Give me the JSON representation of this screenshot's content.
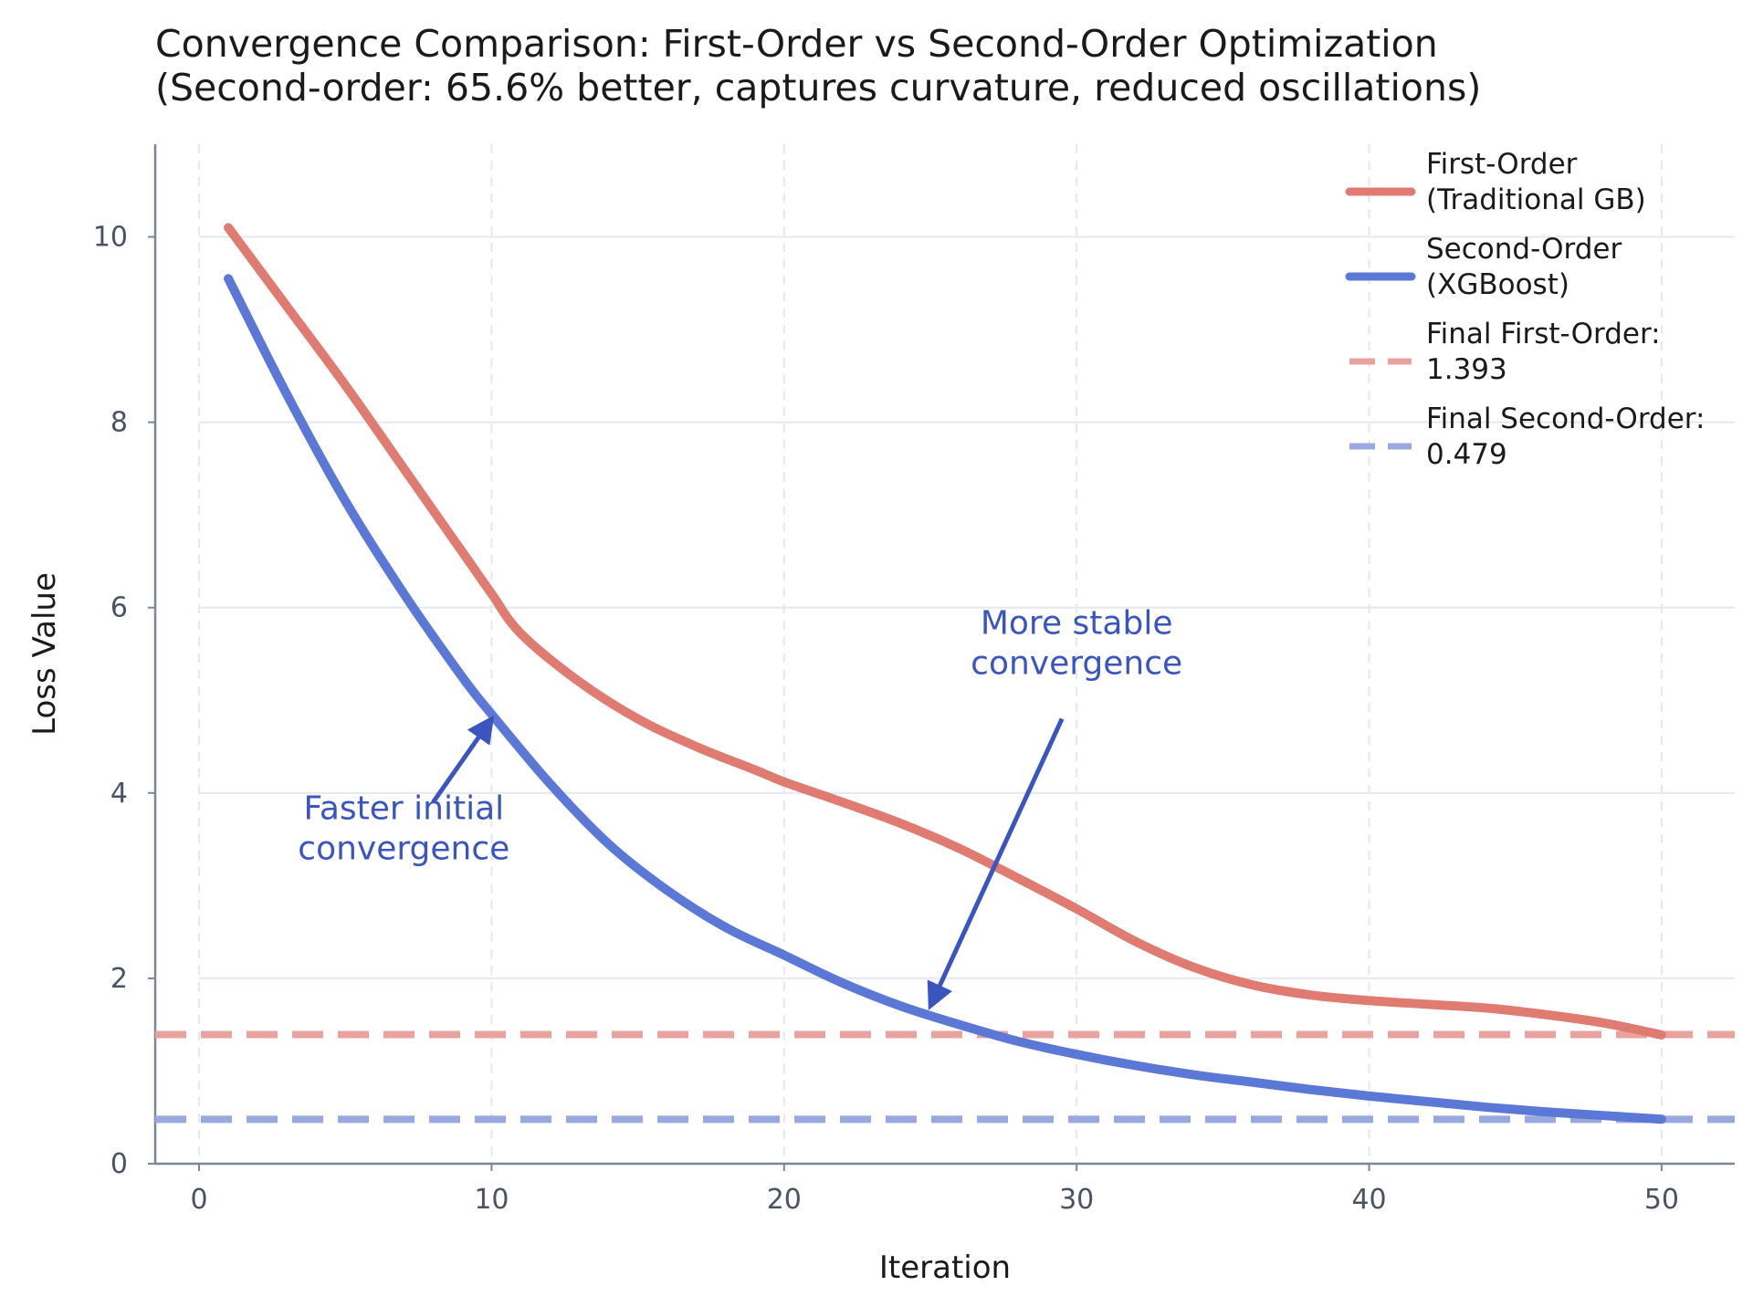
{
  "chart_data": {
    "type": "line",
    "title": "Convergence Comparison: First-Order vs Second-Order Optimization",
    "subtitle": "(Second-order: 65.6% better, captures curvature, reduced oscillations)",
    "xlabel": "Iteration",
    "ylabel": "Loss Value",
    "xlim": [
      -1.5,
      52.5
    ],
    "ylim": [
      0,
      11
    ],
    "xticks": [
      0,
      10,
      20,
      30,
      40,
      50
    ],
    "yticks": [
      0,
      2,
      4,
      6,
      8,
      10
    ],
    "grid": true,
    "legend_position": "top-right",
    "series": [
      {
        "name": "First-Order\n(Traditional GB)",
        "color": "#e07b72",
        "style": "solid",
        "x": [
          1,
          3,
          5,
          7,
          9,
          10,
          11,
          13,
          15,
          17,
          19,
          20,
          22,
          24,
          26,
          28,
          30,
          32,
          34,
          36,
          38,
          40,
          42,
          44,
          46,
          48,
          50
        ],
        "y": [
          10.1,
          9.25,
          8.4,
          7.5,
          6.6,
          6.15,
          5.72,
          5.2,
          4.8,
          4.5,
          4.25,
          4.12,
          3.9,
          3.67,
          3.4,
          3.08,
          2.75,
          2.4,
          2.12,
          1.93,
          1.82,
          1.76,
          1.72,
          1.68,
          1.61,
          1.52,
          1.39
        ]
      },
      {
        "name": "Second-Order\n(XGBoost)",
        "color": "#5b78d6",
        "style": "solid",
        "x": [
          1,
          3,
          5,
          7,
          9,
          10,
          12,
          14,
          16,
          18,
          20,
          22,
          24,
          26,
          28,
          30,
          32,
          34,
          36,
          38,
          40,
          42,
          44,
          46,
          48,
          50
        ],
        "y": [
          9.55,
          8.3,
          7.15,
          6.15,
          5.25,
          4.85,
          4.1,
          3.45,
          2.95,
          2.55,
          2.25,
          1.95,
          1.7,
          1.5,
          1.32,
          1.18,
          1.06,
          0.96,
          0.88,
          0.8,
          0.73,
          0.67,
          0.61,
          0.56,
          0.52,
          0.48
        ]
      },
      {
        "name": "Final First-Order:\n1.393",
        "color": "#e8a39e",
        "style": "dashed",
        "x": [
          -1.5,
          52.5
        ],
        "y": [
          1.393,
          1.393
        ]
      },
      {
        "name": "Final Second-Order:\n0.479",
        "color": "#99a8df",
        "style": "dashed",
        "x": [
          -1.5,
          52.5
        ],
        "y": [
          0.479,
          0.479
        ]
      }
    ],
    "annotations": [
      {
        "text": "Faster initial\nconvergence",
        "text_xy": [
          7,
          3.5
        ],
        "arrow_to": [
          10,
          4.8
        ],
        "arrow_from": [
          8,
          3.9
        ],
        "color": "#3a55c0"
      },
      {
        "text": "More stable\nconvergence",
        "text_xy": [
          30,
          5.5
        ],
        "arrow_to": [
          25,
          1.7
        ],
        "arrow_from": [
          29.5,
          4.8
        ],
        "color": "#3a55c0"
      }
    ]
  }
}
